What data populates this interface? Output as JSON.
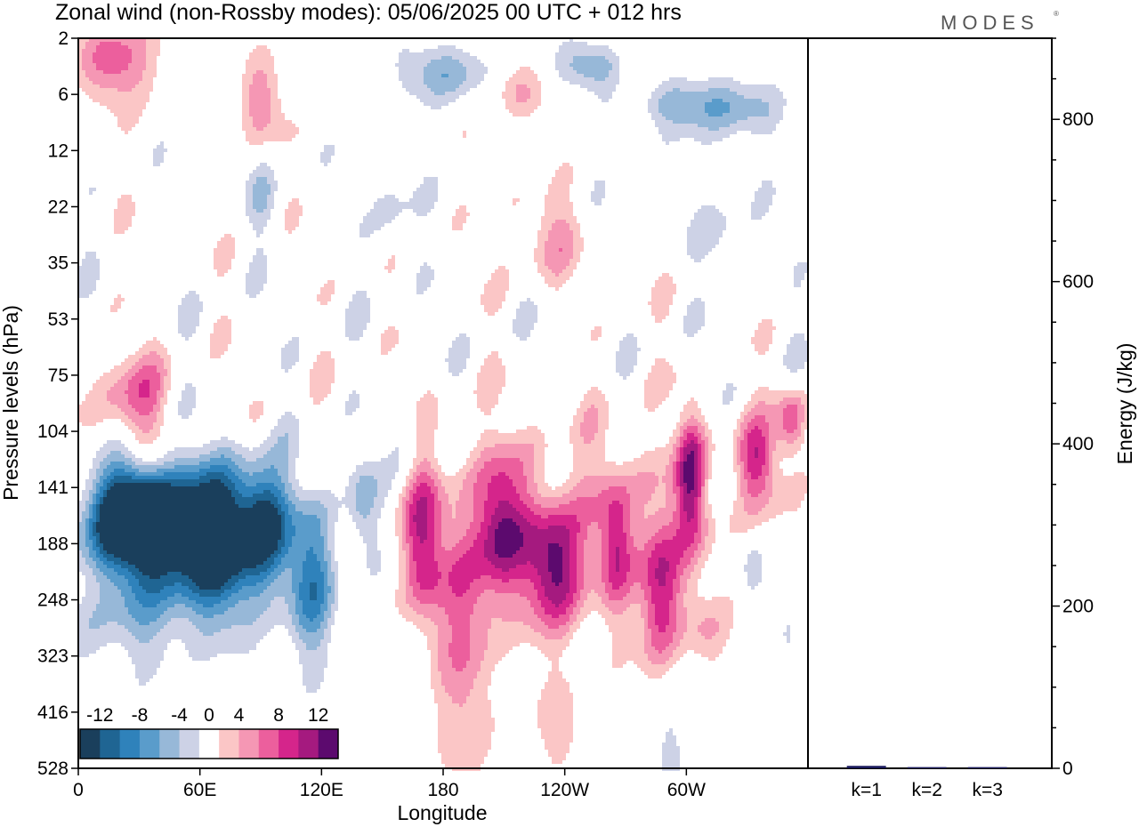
{
  "chart_data": [
    {
      "type": "heatmap",
      "title": "Zonal wind (non-Rossby modes):  05/06/2025  00 UTC  + 012 hrs",
      "xlabel": "Longitude",
      "ylabel": "Pressure levels (hPa)",
      "x_ticks": [
        "0",
        "60E",
        "120E",
        "180",
        "120W",
        "60W"
      ],
      "x_tick_values": [
        0,
        60,
        120,
        180,
        240,
        300
      ],
      "xlim": [
        0,
        360
      ],
      "y_ticks": [
        "2",
        "6",
        "12",
        "22",
        "35",
        "53",
        "75",
        "104",
        "141",
        "188",
        "248",
        "323",
        "416",
        "528"
      ],
      "colorbar": {
        "labels": [
          "-12",
          "-8",
          "-4",
          "0",
          "4",
          "8",
          "12"
        ],
        "levels": [
          -14,
          -12,
          -10,
          -8,
          -6,
          -4,
          -2,
          2,
          4,
          6,
          8,
          10,
          12,
          14
        ],
        "colors": [
          "#1a3f5c",
          "#1f6593",
          "#2f82bb",
          "#5a9ccb",
          "#97b8d8",
          "#cdd2e6",
          "#ffffff",
          "#fbc6c6",
          "#f597b4",
          "#ec5f9d",
          "#d5258b",
          "#a51a7f",
          "#5c0a6e"
        ],
        "placement": "bottom-left"
      },
      "blobs": [
        {
          "lon": 40,
          "lev": 8.6,
          "wlon": 36,
          "wlev": 1.0,
          "val": -13
        },
        {
          "lon": 25,
          "lev": 8.5,
          "wlon": 18,
          "wlev": 0.9,
          "val": -10
        },
        {
          "lon": 70,
          "lev": 8.8,
          "wlon": 20,
          "wlev": 1.2,
          "val": -9
        },
        {
          "lon": 92,
          "lev": 8.6,
          "wlon": 12,
          "wlev": 1.0,
          "val": -11
        },
        {
          "lon": 60,
          "lev": 9.6,
          "wlon": 40,
          "wlev": 1.0,
          "val": -5
        },
        {
          "lon": 115,
          "lev": 9.6,
          "wlon": 12,
          "wlev": 1.4,
          "val": -8
        },
        {
          "lon": 140,
          "lev": 8.3,
          "wlon": 8,
          "wlev": 1.0,
          "val": -6
        },
        {
          "lon": 20,
          "lev": 10.5,
          "wlon": 40,
          "wlev": 0.8,
          "val": -3
        },
        {
          "lon": 170,
          "lev": 9.0,
          "wlon": 10,
          "wlev": 1.4,
          "val": 9
        },
        {
          "lon": 192,
          "lev": 10.0,
          "wlon": 14,
          "wlev": 1.6,
          "val": 6
        },
        {
          "lon": 208,
          "lev": 8.7,
          "wlon": 12,
          "wlev": 1.2,
          "val": 10
        },
        {
          "lon": 235,
          "lev": 9.4,
          "wlon": 14,
          "wlev": 1.1,
          "val": 12
        },
        {
          "lon": 265,
          "lev": 9.0,
          "wlon": 8,
          "wlev": 1.1,
          "val": 7
        },
        {
          "lon": 287,
          "lev": 9.9,
          "wlon": 10,
          "wlev": 1.5,
          "val": 10
        },
        {
          "lon": 302,
          "lev": 7.8,
          "wlon": 7,
          "wlev": 1.1,
          "val": 9
        },
        {
          "lon": 334,
          "lev": 7.5,
          "wlon": 10,
          "wlev": 0.7,
          "val": 8
        },
        {
          "lon": 352,
          "lev": 6.8,
          "wlon": 7,
          "wlev": 0.6,
          "val": 8
        },
        {
          "lon": 260,
          "lev": 8.5,
          "wlon": 90,
          "wlev": 1.8,
          "val": 3
        },
        {
          "lon": 190,
          "lev": 12.2,
          "wlon": 15,
          "wlev": 1.4,
          "val": 3
        },
        {
          "lon": 240,
          "lev": 12.3,
          "wlon": 14,
          "wlev": 0.9,
          "val": 3
        },
        {
          "lon": 310,
          "lev": 10.6,
          "wlon": 10,
          "wlev": 0.6,
          "val": 3
        },
        {
          "lon": 290,
          "lev": 12.3,
          "wlon": 8,
          "wlev": 1.4,
          "val": -3
        },
        {
          "lon": 350,
          "lev": 10.6,
          "wlon": 6,
          "wlev": 1.5,
          "val": -3
        },
        {
          "lon": 333,
          "lev": 9.5,
          "wlon": 7,
          "wlev": 0.6,
          "val": -3
        },
        {
          "lon": 162,
          "lev": 7.1,
          "wlon": 8,
          "wlev": 0.7,
          "val": -3
        },
        {
          "lon": 27,
          "lev": 6.5,
          "wlon": 16,
          "wlev": 1.0,
          "val": 7
        },
        {
          "lon": 20,
          "lev": 0.4,
          "wlon": 20,
          "wlev": 0.8,
          "val": 7
        },
        {
          "lon": 90,
          "lev": 1.2,
          "wlon": 10,
          "wlev": 0.8,
          "val": 6
        },
        {
          "lon": 215,
          "lev": 0.9,
          "wlon": 12,
          "wlev": 0.5,
          "val": 4
        },
        {
          "lon": 280,
          "lev": 0.6,
          "wlon": 16,
          "wlev": 0.4,
          "val": 3
        },
        {
          "lon": 230,
          "lev": 3.5,
          "wlon": 20,
          "wlev": 0.8,
          "val": 4
        },
        {
          "lon": 180,
          "lev": 0.6,
          "wlon": 20,
          "wlev": 0.5,
          "val": -6
        },
        {
          "lon": 255,
          "lev": 0.5,
          "wlon": 18,
          "wlev": 0.4,
          "val": -6
        },
        {
          "lon": 310,
          "lev": 1.2,
          "wlon": 30,
          "wlev": 0.5,
          "val": -7
        },
        {
          "lon": 155,
          "lev": 3.1,
          "wlon": 10,
          "wlev": 0.8,
          "val": -3
        },
        {
          "lon": 90,
          "lev": 2.7,
          "wlon": 8,
          "wlev": 0.8,
          "val": -3
        },
        {
          "lon": 320,
          "lev": 3.5,
          "wlon": 12,
          "wlev": 0.8,
          "val": -3
        }
      ]
    },
    {
      "type": "bar",
      "ylabel": "Energy (J/kg)",
      "categories": [
        "k=1",
        "k=2",
        "k=3"
      ],
      "values": [
        3,
        1.5,
        1.5
      ],
      "ylim": [
        0,
        900
      ],
      "y_ticks": [
        0,
        200,
        400,
        600,
        800
      ],
      "bar_color": "#1a1a5c"
    }
  ],
  "logo": "MODES"
}
